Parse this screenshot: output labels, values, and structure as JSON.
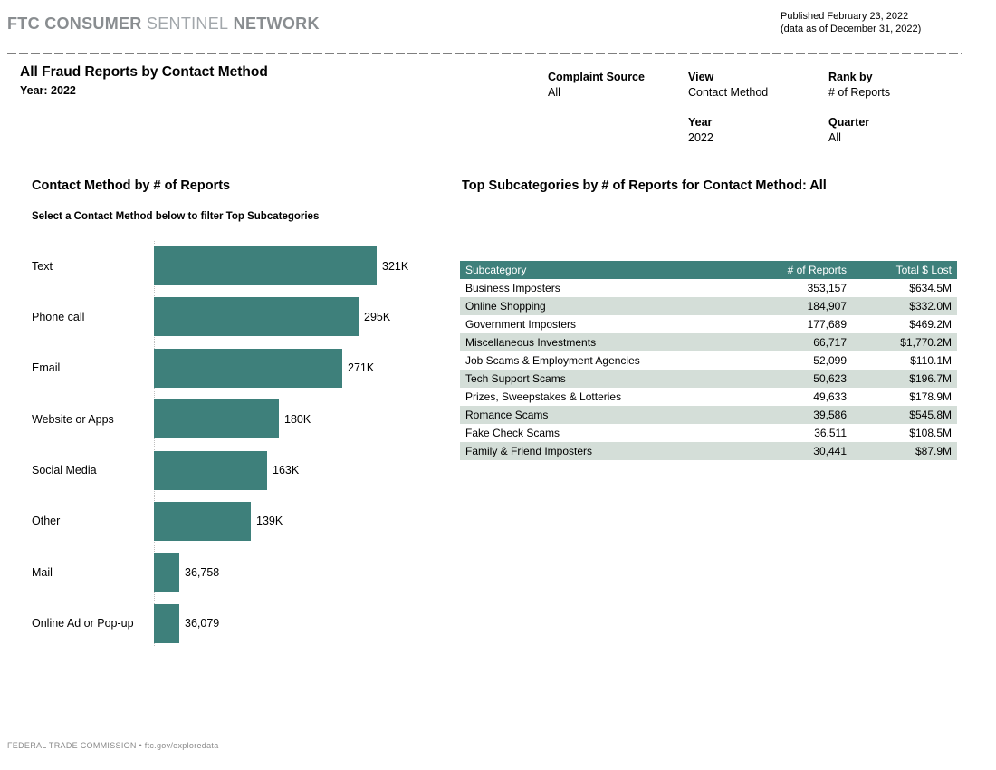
{
  "brand": {
    "bold1": "FTC CONSUMER",
    "light": "SENTINEL",
    "bold2": "NETWORK"
  },
  "published": {
    "line1": "Published February 23, 2022",
    "line2": "(data as of December 31, 2022)"
  },
  "page": {
    "title": "All Fraud Reports by Contact Method",
    "subtitle": "Year: 2022"
  },
  "filters": {
    "complaint_source": {
      "label": "Complaint Source",
      "value": "All"
    },
    "view": {
      "label": "View",
      "value": "Contact Method"
    },
    "rank_by": {
      "label": "Rank by",
      "value": "# of Reports"
    },
    "year": {
      "label": "Year",
      "value": "2022"
    },
    "quarter": {
      "label": "Quarter",
      "value": "All"
    }
  },
  "chart_data": [
    {
      "type": "bar",
      "orientation": "horizontal",
      "title": "Contact Method by # of Reports",
      "subtitle": "Select a Contact Method below to filter Top Subcategories",
      "categories": [
        "Text",
        "Phone call",
        "Email",
        "Website or Apps",
        "Social Media",
        "Other",
        "Mail",
        "Online Ad or Pop-up"
      ],
      "values": [
        321000,
        295000,
        271000,
        180000,
        163000,
        139000,
        36758,
        36079
      ],
      "value_labels": [
        "321K",
        "295K",
        "271K",
        "180K",
        "163K",
        "139K",
        "36,758",
        "36,079"
      ],
      "xlabel": "",
      "ylabel": "",
      "xlim": [
        0,
        321000
      ],
      "grid": false,
      "bar_color": "#3e807b"
    },
    {
      "type": "table",
      "title": "Top Subcategories by # of Reports for Contact Method: All",
      "columns": [
        "Subcategory",
        "# of Reports",
        "Total $ Lost"
      ],
      "rows": [
        [
          "Business Imposters",
          "353,157",
          "$634.5M"
        ],
        [
          "Online Shopping",
          "184,907",
          "$332.0M"
        ],
        [
          "Government Imposters",
          "177,689",
          "$469.2M"
        ],
        [
          "Miscellaneous Investments",
          "66,717",
          "$1,770.2M"
        ],
        [
          "Job Scams & Employment Agencies",
          "52,099",
          "$110.1M"
        ],
        [
          "Tech Support Scams",
          "50,623",
          "$196.7M"
        ],
        [
          "Prizes, Sweepstakes & Lotteries",
          "49,633",
          "$178.9M"
        ],
        [
          "Romance Scams",
          "39,586",
          "$545.8M"
        ],
        [
          "Fake Check Scams",
          "36,511",
          "$108.5M"
        ],
        [
          "Family & Friend Imposters",
          "30,441",
          "$87.9M"
        ]
      ]
    }
  ],
  "footer": {
    "text": "FEDERAL TRADE COMMISSION • ftc.gov/exploredata"
  },
  "colors": {
    "accent_teal": "#3e807b",
    "table_row_alt": "#d4ded8",
    "brand_gray": "#898d90",
    "footer_gray": "#8a8a8a"
  }
}
